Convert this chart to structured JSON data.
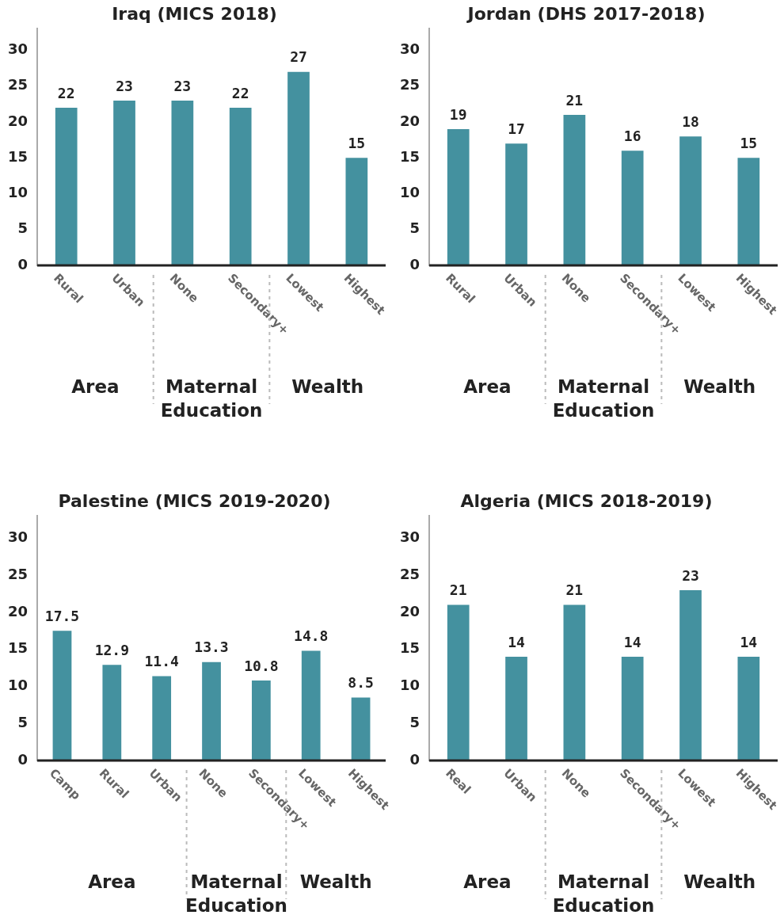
{
  "chart_data": [
    {
      "type": "bar",
      "title": "Iraq (MICS 2018)",
      "categories": [
        "Rural",
        "Urban",
        "None",
        "Secondary+",
        "Lowest",
        "Highest"
      ],
      "values": [
        22,
        23,
        23,
        22,
        27,
        15
      ],
      "color": "#44919f",
      "ylim": [
        0,
        33
      ],
      "yticks": [
        0,
        5,
        10,
        15,
        20,
        25,
        30
      ],
      "grid": false,
      "legend": false,
      "data_labels": true,
      "annotations": [
        "Area",
        "Maternal Education",
        "Wealth"
      ]
    },
    {
      "type": "bar",
      "title": "Jordan (DHS 2017-2018)",
      "categories": [
        "Rural",
        "Urban",
        "None",
        "Secondary+",
        "Lowest",
        "Highest"
      ],
      "values": [
        19,
        17,
        21,
        16,
        18,
        15
      ],
      "color": "#44919f",
      "ylim": [
        0,
        33
      ],
      "yticks": [
        0,
        5,
        10,
        15,
        20,
        25,
        30
      ],
      "grid": false,
      "legend": false,
      "data_labels": true,
      "annotations": [
        "Area",
        "Maternal Education",
        "Wealth"
      ]
    },
    {
      "type": "bar",
      "title": "Palestine (MICS 2019-2020)",
      "categories": [
        "Camp",
        "Rural",
        "Urban",
        "None",
        "Secondary+",
        "Lowest",
        "Highest"
      ],
      "values": [
        17.5,
        12.9,
        11.4,
        13.3,
        10.8,
        14.8,
        8.5
      ],
      "color": "#44919f",
      "ylim": [
        0,
        33
      ],
      "yticks": [
        0,
        5,
        10,
        15,
        20,
        25,
        30
      ],
      "grid": false,
      "legend": false,
      "data_labels": true,
      "annotations": [
        "Area",
        "Maternal Education",
        "Wealth"
      ]
    },
    {
      "type": "bar",
      "title": "Algeria (MICS 2018-2019)",
      "categories": [
        "Real",
        "Urban",
        "None",
        "Secondary+",
        "Lowest",
        "Highest"
      ],
      "values": [
        21,
        14,
        21,
        14,
        23,
        14
      ],
      "color": "#44919f",
      "ylim": [
        0,
        33
      ],
      "yticks": [
        0,
        5,
        10,
        15,
        20,
        25,
        30
      ],
      "grid": false,
      "legend": false,
      "data_labels": true,
      "annotations": [
        "Area",
        "Maternal Education",
        "Wealth"
      ]
    }
  ]
}
